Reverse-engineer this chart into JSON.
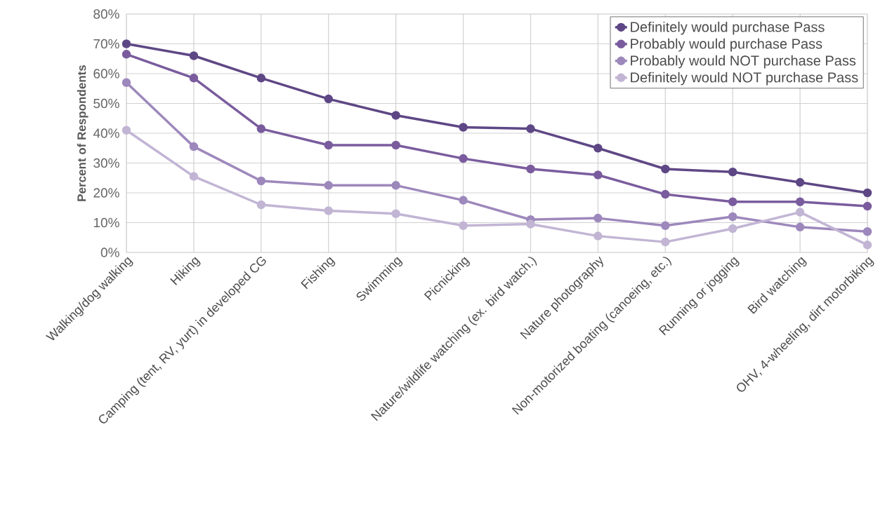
{
  "chart_data": {
    "type": "line",
    "ylabel": "Percent of Respondents",
    "categories": [
      "Walking/dog walking",
      "Hiking",
      "Camping (tent, RV, yurt) in developed CG",
      "Fishing",
      "Swimming",
      "Picnicking",
      "Nature/wildlife watching (ex. bird watch.)",
      "Nature photography",
      "Non-motorized boating (canoeing, etc.)",
      "Running or jogging",
      "Bird watching",
      "OHV, 4-wheeling, dirt motorbiking"
    ],
    "series": [
      {
        "name": "Definitely would purchase Pass",
        "color": "#5e4785",
        "values": [
          70,
          66,
          58.5,
          51.5,
          46,
          42,
          41.5,
          35,
          28,
          27,
          23.5,
          20
        ]
      },
      {
        "name": "Probably would purchase Pass",
        "color": "#7a5c9e",
        "values": [
          66.5,
          58.5,
          41.5,
          36,
          36,
          31.5,
          28,
          26,
          19.5,
          17,
          17,
          15.5
        ]
      },
      {
        "name": "Probably would NOT purchase Pass",
        "color": "#9d88bc",
        "values": [
          57,
          35.5,
          24,
          22.5,
          22.5,
          17.5,
          11,
          11.5,
          9,
          12,
          8.5,
          7
        ]
      },
      {
        "name": "Definitely would NOT purchase Pass",
        "color": "#c2b5d4",
        "values": [
          41,
          25.5,
          16,
          14,
          13,
          9,
          9.5,
          5.5,
          3.5,
          8,
          13.5,
          2.5
        ]
      }
    ],
    "ylim": [
      0,
      80
    ],
    "yticks": [
      {
        "value": 0,
        "label": "0%"
      },
      {
        "value": 10,
        "label": "10%"
      },
      {
        "value": 20,
        "label": "20%"
      },
      {
        "value": 30,
        "label": "30%"
      },
      {
        "value": 40,
        "label": "40%"
      },
      {
        "value": 50,
        "label": "50%"
      },
      {
        "value": 60,
        "label": "60%"
      },
      {
        "value": 70,
        "label": "70%"
      },
      {
        "value": 80,
        "label": "80%"
      }
    ],
    "grid": true,
    "legend": "top right",
    "marker": "circle"
  }
}
